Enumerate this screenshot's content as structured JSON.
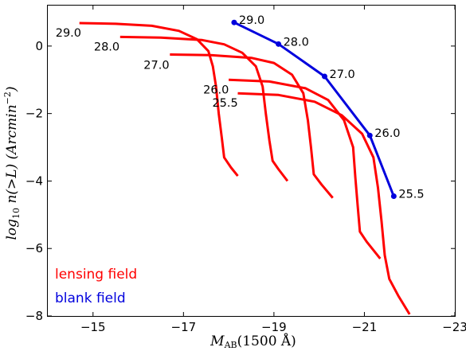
{
  "chart_data": {
    "type": "line",
    "xlabel": "M_AB(1500 Å)",
    "ylabel": "log10 n(>L) (Arcmin^-2)",
    "xlim": [
      -14,
      -23
    ],
    "ylim": [
      -8,
      1.2
    ],
    "x_ticks": [
      -15,
      -17,
      -19,
      -21,
      -23
    ],
    "x_tick_labels": [
      "−15",
      "−17",
      "−19",
      "−21",
      "−23"
    ],
    "y_ticks": [
      0,
      -2,
      -4,
      -6,
      -8
    ],
    "y_tick_labels": [
      "0",
      "−2",
      "−4",
      "−6",
      "−8"
    ],
    "grid": false,
    "legend_placement": "bottom-left",
    "legend": [
      {
        "label": "lensing field",
        "color": "#ff0000"
      },
      {
        "label": "blank field",
        "color": "#0000dd"
      }
    ],
    "series": [
      {
        "name": "lensing field",
        "color": "#ff0000",
        "curves": [
          {
            "label": "29.0",
            "points": [
              [
                -14.7,
                0.68
              ],
              [
                -15.5,
                0.66
              ],
              [
                -16.3,
                0.6
              ],
              [
                -16.9,
                0.45
              ],
              [
                -17.3,
                0.2
              ],
              [
                -17.55,
                -0.15
              ],
              [
                -17.65,
                -0.6
              ],
              [
                -17.72,
                -1.2
              ],
              [
                -17.78,
                -2.0
              ],
              [
                -17.85,
                -2.75
              ],
              [
                -17.9,
                -3.3
              ],
              [
                -18.05,
                -3.6
              ],
              [
                -18.2,
                -3.85
              ]
            ]
          },
          {
            "label": "28.0",
            "points": [
              [
                -15.6,
                0.27
              ],
              [
                -16.5,
                0.25
              ],
              [
                -17.4,
                0.18
              ],
              [
                -17.9,
                0.05
              ],
              [
                -18.3,
                -0.2
              ],
              [
                -18.6,
                -0.6
              ],
              [
                -18.75,
                -1.2
              ],
              [
                -18.82,
                -2.0
              ],
              [
                -18.9,
                -2.8
              ],
              [
                -18.97,
                -3.4
              ],
              [
                -19.1,
                -3.65
              ],
              [
                -19.3,
                -4.0
              ]
            ]
          },
          {
            "label": "27.0",
            "points": [
              [
                -16.7,
                -0.25
              ],
              [
                -17.6,
                -0.27
              ],
              [
                -18.5,
                -0.35
              ],
              [
                -19.0,
                -0.5
              ],
              [
                -19.4,
                -0.85
              ],
              [
                -19.65,
                -1.4
              ],
              [
                -19.75,
                -2.2
              ],
              [
                -19.82,
                -3.0
              ],
              [
                -19.88,
                -3.8
              ],
              [
                -20.05,
                -4.1
              ],
              [
                -20.3,
                -4.5
              ]
            ]
          },
          {
            "label": "26.0",
            "points": [
              [
                -18.0,
                -1.0
              ],
              [
                -18.9,
                -1.05
              ],
              [
                -19.7,
                -1.25
              ],
              [
                -20.2,
                -1.6
              ],
              [
                -20.55,
                -2.2
              ],
              [
                -20.75,
                -3.0
              ],
              [
                -20.8,
                -3.9
              ],
              [
                -20.85,
                -4.7
              ],
              [
                -20.9,
                -5.5
              ],
              [
                -21.05,
                -5.8
              ],
              [
                -21.35,
                -6.3
              ]
            ]
          },
          {
            "label": "25.5",
            "points": [
              [
                -18.2,
                -1.4
              ],
              [
                -19.1,
                -1.45
              ],
              [
                -19.9,
                -1.65
              ],
              [
                -20.5,
                -2.05
              ],
              [
                -20.95,
                -2.6
              ],
              [
                -21.2,
                -3.3
              ],
              [
                -21.3,
                -4.2
              ],
              [
                -21.38,
                -5.2
              ],
              [
                -21.45,
                -6.2
              ],
              [
                -21.55,
                -6.9
              ],
              [
                -21.75,
                -7.4
              ],
              [
                -22.0,
                -7.95
              ]
            ]
          }
        ]
      },
      {
        "name": "blank field",
        "color": "#0000dd",
        "points": [
          {
            "x": -18.12,
            "y": 0.7,
            "label": "29.0"
          },
          {
            "x": -19.1,
            "y": 0.06,
            "label": "28.0"
          },
          {
            "x": -20.12,
            "y": -0.9,
            "label": "27.0"
          },
          {
            "x": -21.12,
            "y": -2.65,
            "label": "26.0"
          },
          {
            "x": -21.65,
            "y": -4.45,
            "label": "25.5"
          }
        ]
      }
    ]
  },
  "axis": {
    "xlabel_main": "M",
    "xlabel_sub": "AB",
    "xlabel_rest": "(1500 Å)",
    "ylabel_log": "log",
    "ylabel_log_sub": "10",
    "ylabel_main": " n(>L)  (Arcmin",
    "ylabel_sup": "−2",
    "ylabel_close": ")"
  }
}
